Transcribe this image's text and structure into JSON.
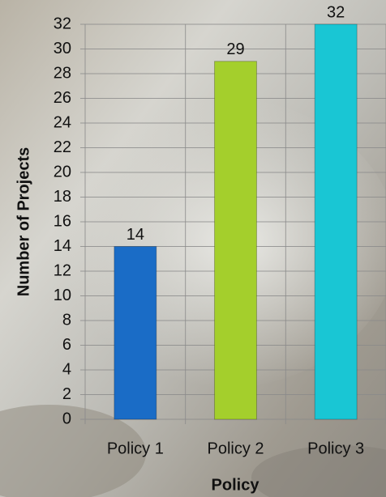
{
  "chart_data": {
    "type": "bar",
    "x_label": "Policy",
    "y_label": "Number of Projects",
    "categories": [
      "Policy 1",
      "Policy 2",
      "Policy 3"
    ],
    "values": [
      14,
      29,
      32
    ],
    "colors": [
      "#1a6cc6",
      "#a4cf2c",
      "#19c6d4"
    ],
    "ylim": [
      0,
      32
    ],
    "yticks": [
      0,
      2,
      4,
      6,
      8,
      10,
      12,
      14,
      16,
      18,
      20,
      22,
      24,
      26,
      28,
      30,
      32
    ],
    "grid": true
  }
}
